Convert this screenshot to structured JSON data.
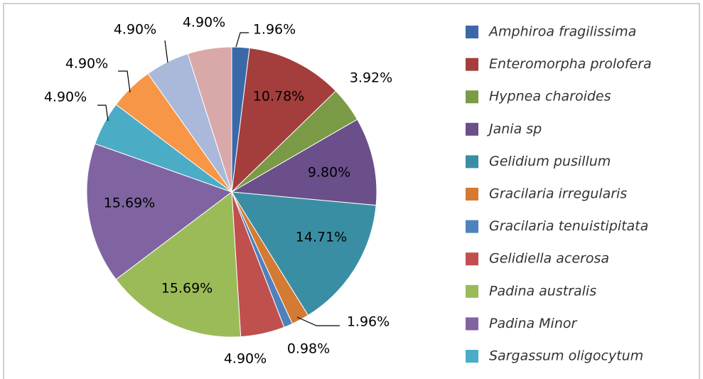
{
  "chart_data": {
    "type": "pie",
    "categories": [
      "Amphiroa fragilissima",
      "Enteromorpha prolofera",
      "Hypnea charoides",
      "Jania sp",
      "Gelidium pusillum",
      "Gracilaria irregularis",
      "Gracilaria tenuistipitata",
      "Gelidiella acerosa",
      "Padina australis",
      "Padina Minor",
      "Sargassum oligocytum",
      null,
      null,
      null
    ],
    "values": [
      1.96,
      10.78,
      3.92,
      9.8,
      14.71,
      1.96,
      0.98,
      4.9,
      15.69,
      15.69,
      4.9,
      4.9,
      4.9,
      4.9
    ],
    "value_labels": [
      "1.96%",
      "10.78%",
      "3.92%",
      "9.80%",
      "14.71%",
      "1.96%",
      "0.98%",
      "4.90%",
      "15.69%",
      "15.69%",
      "4.90%",
      "4.90%",
      "4.90%",
      "4.90%"
    ],
    "colors": [
      "#3b69a8",
      "#a33e3c",
      "#7b9a46",
      "#6a4f8b",
      "#3a8ea4",
      "#d37a33",
      "#4f81bd",
      "#c0504d",
      "#9bbb59",
      "#8064a2",
      "#4bacc6",
      "#f79646",
      "#aab9d9",
      "#d9a9a9"
    ],
    "legend": "right"
  }
}
